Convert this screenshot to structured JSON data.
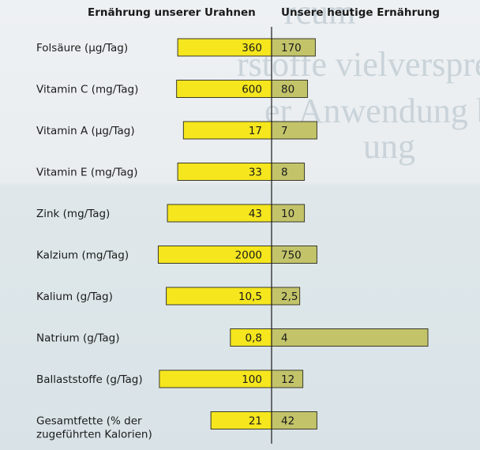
{
  "chart_data": {
    "type": "bar",
    "orientation": "horizontal-diverging",
    "series": [
      {
        "name": "Ernährung unserer Urahnen",
        "color": "#f5e61e",
        "labels": [
          "360",
          "600",
          "17",
          "33",
          "43",
          "2000",
          "10,5",
          "0,8",
          "100",
          "21"
        ],
        "values": [
          360,
          600,
          17,
          33,
          43,
          2000,
          10.5,
          0.8,
          100,
          21
        ]
      },
      {
        "name": "Unsere heutige Ernährung",
        "color": "#c3c46a",
        "labels": [
          "170",
          "80",
          "7",
          "8",
          "10",
          "750",
          "2,5",
          "4",
          "12",
          "42"
        ],
        "values": [
          170,
          80,
          7,
          8,
          10,
          750,
          2.5,
          4,
          12,
          42
        ]
      }
    ],
    "categories": [
      [
        "Folsäure (µg/Tag)"
      ],
      [
        "Vitamin C (mg/Tag)"
      ],
      [
        "Vitamin A (µg/Tag)"
      ],
      [
        "Vitamin E (mg/Tag)"
      ],
      [
        "Zink (mg/Tag)"
      ],
      [
        "Kalzium (mg/Tag)"
      ],
      [
        "Kalium (g/Tag)"
      ],
      [
        "Natrium (g/Tag)"
      ],
      [
        "Ballaststoffe (g/Tag)"
      ],
      [
        "Gesamtfette (% der",
        "zugeführten Kalorien)"
      ]
    ],
    "left_bar_share": [
      0.82,
      0.83,
      0.77,
      0.82,
      0.91,
      0.99,
      0.92,
      0.36,
      0.98,
      0.53
    ],
    "right_bar_share": [
      0.28,
      0.23,
      0.29,
      0.21,
      0.21,
      0.29,
      0.18,
      1.0,
      0.2,
      0.29
    ],
    "xlabel": "",
    "ylabel": "",
    "grid": false
  }
}
